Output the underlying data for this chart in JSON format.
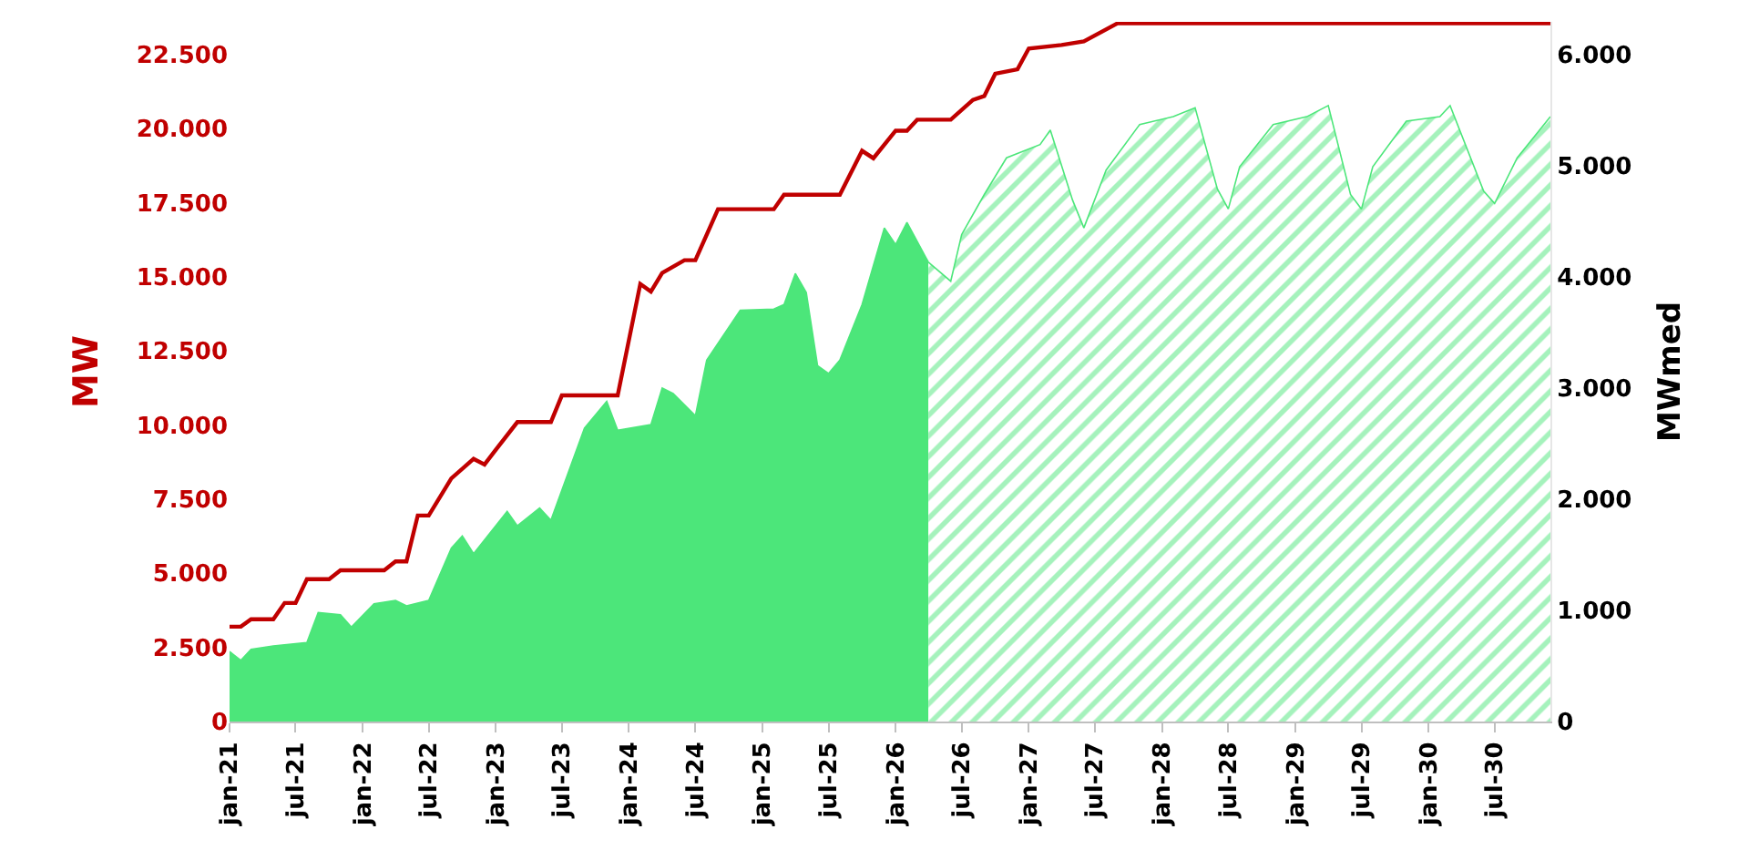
{
  "chart_data": {
    "type": "area",
    "ylabel": "MW",
    "y2label": "MWmed",
    "xlim": [
      "2021-01",
      "2030-12"
    ],
    "xticks": [
      {
        "value": "2021-01",
        "label": "jan-21"
      },
      {
        "value": "2021-07",
        "label": "jul-21"
      },
      {
        "value": "2022-01",
        "label": "jan-22"
      },
      {
        "value": "2022-07",
        "label": "jul-22"
      },
      {
        "value": "2023-01",
        "label": "jan-23"
      },
      {
        "value": "2023-07",
        "label": "jul-23"
      },
      {
        "value": "2024-01",
        "label": "jan-24"
      },
      {
        "value": "2024-07",
        "label": "jul-24"
      },
      {
        "value": "2025-01",
        "label": "jan-25"
      },
      {
        "value": "2025-07",
        "label": "jul-25"
      },
      {
        "value": "2026-01",
        "label": "jan-26"
      },
      {
        "value": "2026-07",
        "label": "jul-26"
      },
      {
        "value": "2027-01",
        "label": "jan-27"
      },
      {
        "value": "2027-07",
        "label": "jul-27"
      },
      {
        "value": "2028-01",
        "label": "jan-28"
      },
      {
        "value": "2028-07",
        "label": "jul-28"
      },
      {
        "value": "2029-01",
        "label": "jan-29"
      },
      {
        "value": "2029-07",
        "label": "jul-29"
      },
      {
        "value": "2030-01",
        "label": "jan-30"
      },
      {
        "value": "2030-07",
        "label": "jul-30"
      }
    ],
    "ylim": [
      0,
      23600
    ],
    "yticks": [
      {
        "value": 0,
        "label": "0"
      },
      {
        "value": 2500,
        "label": "2.500"
      },
      {
        "value": 5000,
        "label": "5.000"
      },
      {
        "value": 7500,
        "label": "7.500"
      },
      {
        "value": 10000,
        "label": "10.000"
      },
      {
        "value": 12500,
        "label": "12.500"
      },
      {
        "value": 15000,
        "label": "15.000"
      },
      {
        "value": 17500,
        "label": "17.500"
      },
      {
        "value": 20000,
        "label": "20.000"
      },
      {
        "value": 22500,
        "label": "22.500"
      }
    ],
    "y2lim": [
      0,
      6293
    ],
    "y2ticks": [
      {
        "value": 0,
        "label": "0"
      },
      {
        "value": 1000,
        "label": "1.000"
      },
      {
        "value": 2000,
        "label": "2.000"
      },
      {
        "value": 3000,
        "label": "3.000"
      },
      {
        "value": 4000,
        "label": "4.000"
      },
      {
        "value": 5000,
        "label": "5.000"
      },
      {
        "value": 6000,
        "label": "6.000"
      }
    ],
    "series": [
      {
        "axis": "y2",
        "color": "#4ce67a",
        "x": [
          "2021-01",
          "2021-02",
          "2021-03",
          "2021-05",
          "2021-08",
          "2021-09",
          "2021-11",
          "2021-12",
          "2022-02",
          "2022-04",
          "2022-05",
          "2022-07",
          "2022-09",
          "2022-10",
          "2022-11",
          "2023-02",
          "2023-03",
          "2023-05",
          "2023-06",
          "2023-09",
          "2023-11",
          "2023-12",
          "2024-03",
          "2024-04",
          "2024-05",
          "2024-07",
          "2024-08",
          "2024-11",
          "2025-02",
          "2025-03",
          "2025-04",
          "2025-05",
          "2025-06",
          "2025-07",
          "2025-08",
          "2025-10",
          "2025-12",
          "2026-01",
          "2026-02",
          "2026-04"
        ],
        "values": [
          630,
          550,
          650,
          680,
          710,
          980,
          960,
          850,
          1060,
          1090,
          1040,
          1090,
          1560,
          1670,
          1510,
          1890,
          1760,
          1920,
          1810,
          2640,
          2880,
          2620,
          2670,
          3000,
          2950,
          2750,
          3250,
          3700,
          3710,
          3750,
          4030,
          3860,
          3200,
          3130,
          3250,
          3750,
          4440,
          4290,
          4490,
          4130
        ]
      },
      {
        "axis": "y2",
        "color": "#4ce67a",
        "x": [
          "2026-04",
          "2026-06",
          "2026-07",
          "2026-09",
          "2026-11",
          "2027-02",
          "2027-03",
          "2027-05",
          "2027-06",
          "2027-08",
          "2027-11",
          "2028-02",
          "2028-04",
          "2028-06",
          "2028-07",
          "2028-08",
          "2028-11",
          "2029-02",
          "2029-04",
          "2029-06",
          "2029-07",
          "2029-08",
          "2029-11",
          "2030-02",
          "2030-03",
          "2030-06",
          "2030-07",
          "2030-09",
          "2030-12"
        ],
        "values": [
          4130,
          3960,
          4380,
          4740,
          5070,
          5190,
          5320,
          4690,
          4440,
          4960,
          5370,
          5440,
          5520,
          4790,
          4610,
          4990,
          5370,
          5440,
          5540,
          4740,
          4610,
          4990,
          5400,
          5440,
          5540,
          4770,
          4660,
          5070,
          5440
        ]
      },
      {
        "type": "line",
        "axis": "y",
        "color": "#c00000",
        "x": [
          "2021-01",
          "2021-02",
          "2021-03",
          "2021-05",
          "2021-06",
          "2021-07",
          "2021-08",
          "2021-10",
          "2021-11",
          "2022-03",
          "2022-04",
          "2022-05",
          "2022-06",
          "2022-07",
          "2022-09",
          "2022-11",
          "2022-12",
          "2023-01",
          "2023-03",
          "2023-06",
          "2023-07",
          "2023-12",
          "2024-02",
          "2024-03",
          "2024-04",
          "2024-06",
          "2024-07",
          "2024-09",
          "2025-02",
          "2025-03",
          "2025-08",
          "2025-10",
          "2025-11",
          "2026-01",
          "2026-02",
          "2026-03",
          "2026-06",
          "2026-08",
          "2026-09",
          "2026-10",
          "2026-12",
          "2027-01",
          "2027-04",
          "2027-06",
          "2027-09",
          "2030-12"
        ],
        "values": [
          3200,
          3200,
          3450,
          3450,
          4000,
          4000,
          4800,
          4800,
          5100,
          5100,
          5400,
          5400,
          6950,
          6950,
          8200,
          8860,
          8670,
          9170,
          10100,
          10100,
          11000,
          11000,
          14760,
          14500,
          15130,
          15560,
          15560,
          17280,
          17280,
          17770,
          17770,
          19250,
          19000,
          19930,
          19930,
          20300,
          20300,
          20970,
          21100,
          21850,
          22000,
          22700,
          22820,
          22940,
          23550,
          23550
        ]
      }
    ]
  }
}
